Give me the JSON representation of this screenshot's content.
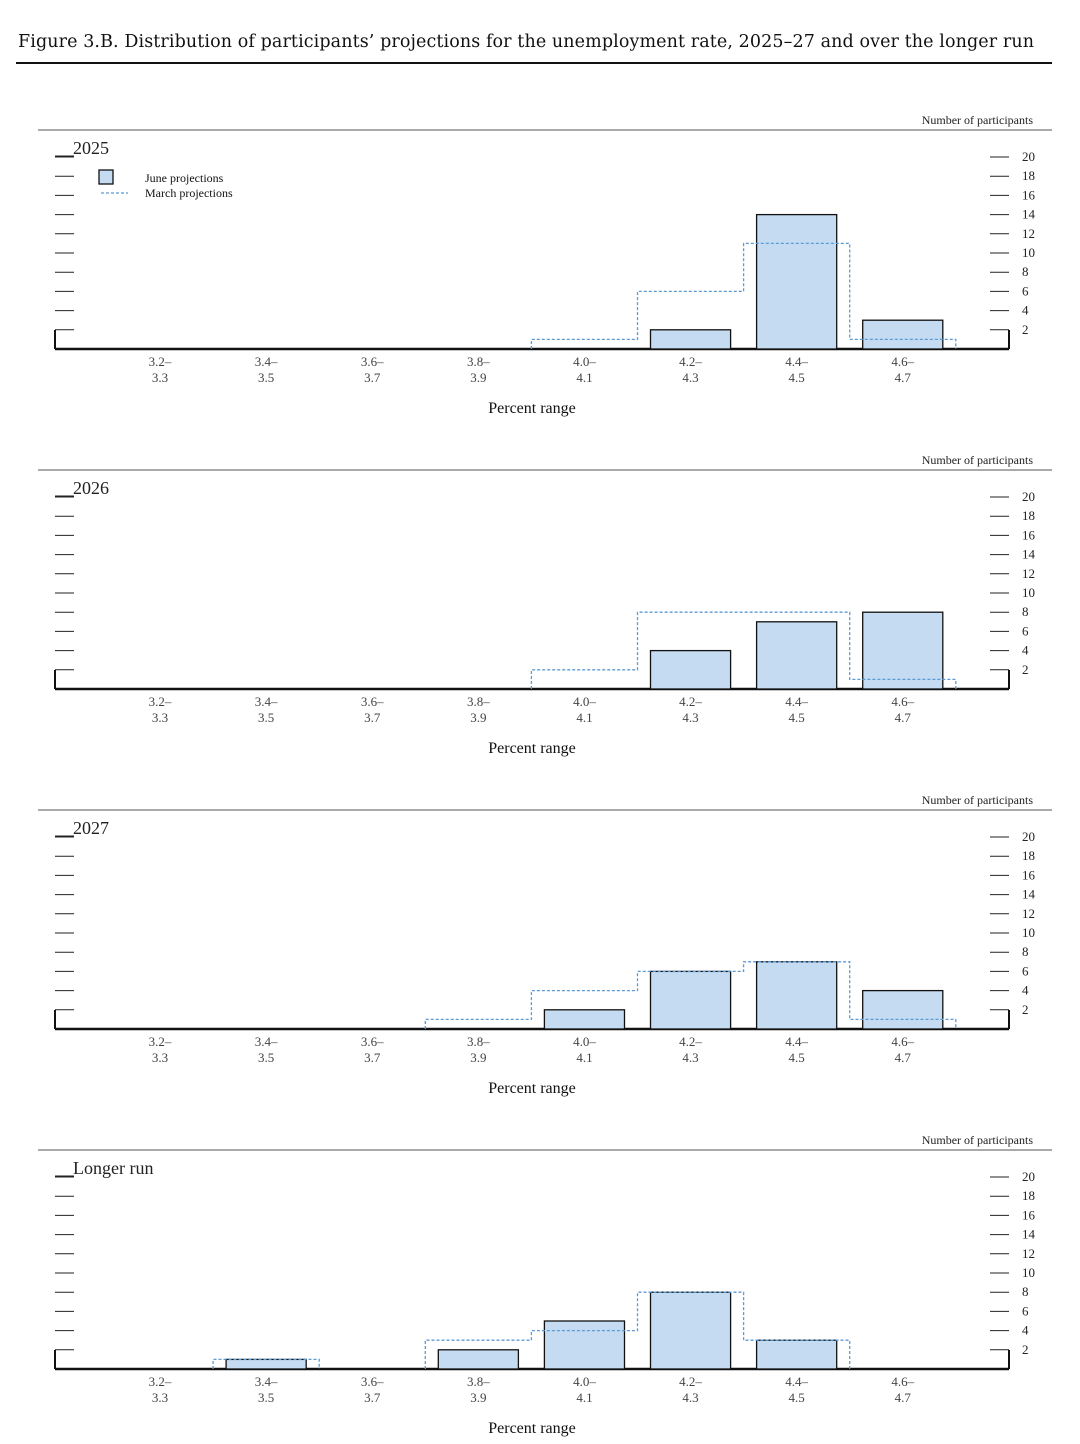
{
  "figure_title": "Figure 3.B. Distribution of participants’ projections for the unemployment rate, 2025–27 and over the longer run",
  "legend": {
    "june": "June projections",
    "march": "March projections"
  },
  "colors": {
    "bar_fill": "#c5dbf2",
    "bar_stroke": "#111111",
    "march_line": "#5b9bd5"
  },
  "chart_data": [
    {
      "type": "bar",
      "title": "2025",
      "xlabel": "Percent range",
      "ylabel": "Number of participants",
      "categories": [
        "3.2–3.3",
        "3.4–3.5",
        "3.6–3.7",
        "3.8–3.9",
        "4.0–4.1",
        "4.2–4.3",
        "4.4–4.5",
        "4.6–4.7"
      ],
      "category_lines": [
        [
          "3.2–",
          "3.3"
        ],
        [
          "3.4–",
          "3.5"
        ],
        [
          "3.6–",
          "3.7"
        ],
        [
          "3.8–",
          "3.9"
        ],
        [
          "4.0–",
          "4.1"
        ],
        [
          "4.2–",
          "4.3"
        ],
        [
          "4.4–",
          "4.5"
        ],
        [
          "4.6–",
          "4.7"
        ]
      ],
      "yticks": [
        2,
        4,
        6,
        8,
        10,
        12,
        14,
        16,
        18,
        20
      ],
      "ylim": [
        0,
        20
      ],
      "series": [
        {
          "name": "June projections",
          "values": [
            0,
            0,
            0,
            0,
            0,
            2,
            14,
            3
          ]
        },
        {
          "name": "March projections",
          "values": [
            0,
            0,
            0,
            0,
            1,
            6,
            11,
            1
          ]
        }
      ],
      "legend": true
    },
    {
      "type": "bar",
      "title": "2026",
      "xlabel": "Percent range",
      "ylabel": "Number of participants",
      "categories": [
        "3.2–3.3",
        "3.4–3.5",
        "3.6–3.7",
        "3.8–3.9",
        "4.0–4.1",
        "4.2–4.3",
        "4.4–4.5",
        "4.6–4.7"
      ],
      "category_lines": [
        [
          "3.2–",
          "3.3"
        ],
        [
          "3.4–",
          "3.5"
        ],
        [
          "3.6–",
          "3.7"
        ],
        [
          "3.8–",
          "3.9"
        ],
        [
          "4.0–",
          "4.1"
        ],
        [
          "4.2–",
          "4.3"
        ],
        [
          "4.4–",
          "4.5"
        ],
        [
          "4.6–",
          "4.7"
        ]
      ],
      "yticks": [
        2,
        4,
        6,
        8,
        10,
        12,
        14,
        16,
        18,
        20
      ],
      "ylim": [
        0,
        20
      ],
      "series": [
        {
          "name": "June projections",
          "values": [
            0,
            0,
            0,
            0,
            0,
            4,
            7,
            8
          ]
        },
        {
          "name": "March projections",
          "values": [
            0,
            0,
            0,
            0,
            2,
            8,
            8,
            1
          ]
        }
      ],
      "legend": false
    },
    {
      "type": "bar",
      "title": "2027",
      "xlabel": "Percent range",
      "ylabel": "Number of participants",
      "categories": [
        "3.2–3.3",
        "3.4–3.5",
        "3.6–3.7",
        "3.8–3.9",
        "4.0–4.1",
        "4.2–4.3",
        "4.4–4.5",
        "4.6–4.7"
      ],
      "category_lines": [
        [
          "3.2–",
          "3.3"
        ],
        [
          "3.4–",
          "3.5"
        ],
        [
          "3.6–",
          "3.7"
        ],
        [
          "3.8–",
          "3.9"
        ],
        [
          "4.0–",
          "4.1"
        ],
        [
          "4.2–",
          "4.3"
        ],
        [
          "4.4–",
          "4.5"
        ],
        [
          "4.6–",
          "4.7"
        ]
      ],
      "yticks": [
        2,
        4,
        6,
        8,
        10,
        12,
        14,
        16,
        18,
        20
      ],
      "ylim": [
        0,
        20
      ],
      "series": [
        {
          "name": "June projections",
          "values": [
            0,
            0,
            0,
            0,
            2,
            6,
            7,
            4
          ]
        },
        {
          "name": "March projections",
          "values": [
            0,
            0,
            0,
            1,
            4,
            6,
            7,
            1
          ]
        }
      ],
      "legend": false
    },
    {
      "type": "bar",
      "title": "Longer run",
      "xlabel": "Percent range",
      "ylabel": "Number of participants",
      "categories": [
        "3.2–3.3",
        "3.4–3.5",
        "3.6–3.7",
        "3.8–3.9",
        "4.0–4.1",
        "4.2–4.3",
        "4.4–4.5",
        "4.6–4.7"
      ],
      "category_lines": [
        [
          "3.2–",
          "3.3"
        ],
        [
          "3.4–",
          "3.5"
        ],
        [
          "3.6–",
          "3.7"
        ],
        [
          "3.8–",
          "3.9"
        ],
        [
          "4.0–",
          "4.1"
        ],
        [
          "4.2–",
          "4.3"
        ],
        [
          "4.4–",
          "4.5"
        ],
        [
          "4.6–",
          "4.7"
        ]
      ],
      "yticks": [
        2,
        4,
        6,
        8,
        10,
        12,
        14,
        16,
        18,
        20
      ],
      "ylim": [
        0,
        20
      ],
      "series": [
        {
          "name": "June projections",
          "values": [
            0,
            1,
            0,
            2,
            5,
            8,
            3,
            0
          ]
        },
        {
          "name": "March projections",
          "values": [
            0,
            1,
            0,
            3,
            4,
            8,
            3,
            0
          ]
        }
      ],
      "legend": false
    }
  ]
}
